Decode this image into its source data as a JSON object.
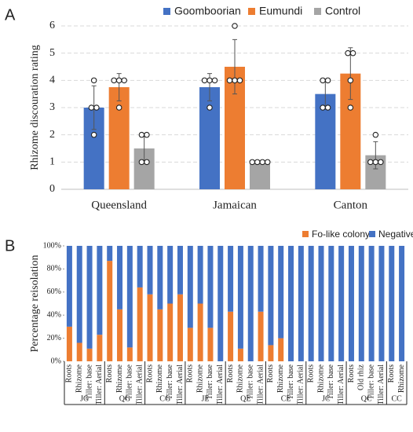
{
  "chart_data": [
    {
      "type": "bar",
      "panel": "A",
      "ylabel": "Rhizome discouration rating",
      "categories": [
        "Queensland",
        "Jamaican",
        "Canton"
      ],
      "ylim": [
        0,
        6
      ],
      "yticks": [
        0,
        1,
        2,
        3,
        4,
        5,
        6
      ],
      "grid": true,
      "legend": "top",
      "series": [
        {
          "name": "Goomboorian",
          "color": "#4472c4",
          "values": [
            3,
            3.75,
            3.5
          ],
          "errors": [
            0.8,
            0.5,
            0.55
          ],
          "points": [
            [
              4,
              3,
              3,
              2
            ],
            [
              4,
              4,
              3,
              4
            ],
            [
              4,
              3,
              3,
              4
            ]
          ]
        },
        {
          "name": "Eumundi",
          "color": "#ed7d31",
          "values": [
            3.75,
            4.5,
            4.25
          ],
          "errors": [
            0.5,
            1.0,
            0.95
          ],
          "points": [
            [
              4,
              4,
              3,
              4
            ],
            [
              4,
              4,
              4,
              6
            ],
            [
              5,
              5,
              4,
              3
            ]
          ]
        },
        {
          "name": "Control",
          "color": "#a5a5a5",
          "values": [
            1.5,
            1,
            1.25
          ],
          "errors": [
            0.55,
            0,
            0.5
          ],
          "points": [
            [
              2,
              1,
              1,
              2
            ],
            [
              1,
              1,
              1,
              1
            ],
            [
              2,
              1,
              1,
              1
            ]
          ]
        }
      ]
    },
    {
      "type": "stacked_bar",
      "panel": "B",
      "ylabel": "Percentage reisolation",
      "ylim": [
        0,
        100
      ],
      "yticks": [
        {
          "value": 0,
          "label": "0%"
        },
        {
          "value": 20,
          "label": "20%"
        },
        {
          "value": 40,
          "label": "40%"
        },
        {
          "value": 60,
          "label": "60%"
        },
        {
          "value": 80,
          "label": "80%"
        },
        {
          "value": 100,
          "label": "100%"
        }
      ],
      "legend": "top-right",
      "groups": [
        {
          "label": "JG",
          "categories": [
            "Roots",
            "Rhizome",
            "Tiller: base",
            "Tiller: Aerial"
          ]
        },
        {
          "label": "QG",
          "categories": [
            "Roots",
            "Rhizome",
            "Tiller: base",
            "Tiller: Aerial"
          ]
        },
        {
          "label": "CG",
          "categories": [
            "Roots",
            "Rhizome",
            "Tiller: base",
            "Tiller: Aerial"
          ]
        },
        {
          "label": "JE",
          "categories": [
            "Roots",
            "Rhizome",
            "Tiller: base",
            "Tiller: Aerial"
          ]
        },
        {
          "label": "QE",
          "categories": [
            "Roots",
            "Rhizome",
            "Tiller: base",
            "Tiller: Aerial"
          ]
        },
        {
          "label": "CE",
          "categories": [
            "Roots",
            "Rhizome",
            "Tiller: base",
            "Tiller: Aerial"
          ]
        },
        {
          "label": "JC",
          "categories": [
            "Roots",
            "Rhizome",
            "Tiller: base",
            "Tiller: Aerial"
          ]
        },
        {
          "label": "QC",
          "categories": [
            "Roots",
            "Old rhiz",
            "Tiller: base",
            "Tiller: Aerial"
          ]
        },
        {
          "label": "CC",
          "categories": [
            "Roots",
            "Rhizome"
          ]
        }
      ],
      "series": [
        {
          "name": "Fo-like colony",
          "color": "#ed7d31",
          "values": [
            30,
            16,
            11,
            23,
            87,
            45,
            12,
            64,
            58,
            45,
            50,
            58,
            29,
            50,
            29,
            0,
            43,
            11,
            0,
            43,
            14,
            20,
            0,
            0,
            0,
            0,
            0,
            0,
            0,
            0,
            0,
            0,
            0,
            0
          ]
        },
        {
          "name": "Negative",
          "color": "#4472c4",
          "values": [
            70,
            84,
            89,
            77,
            13,
            55,
            88,
            36,
            42,
            55,
            50,
            42,
            71,
            50,
            71,
            100,
            57,
            89,
            100,
            57,
            86,
            80,
            100,
            100,
            100,
            100,
            100,
            100,
            100,
            100,
            100,
            100,
            100,
            100
          ]
        }
      ]
    }
  ]
}
